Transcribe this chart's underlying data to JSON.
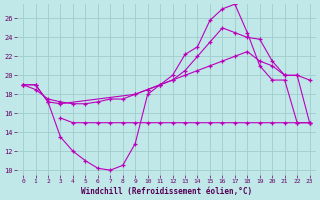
{
  "xlabel": "Windchill (Refroidissement éolien,°C)",
  "bg_color": "#c0e8e8",
  "grid_color": "#a0cccc",
  "line_color": "#bb00bb",
  "xlim": [
    -0.5,
    23.5
  ],
  "ylim": [
    9.5,
    27.5
  ],
  "yticks": [
    10,
    12,
    14,
    16,
    18,
    20,
    22,
    24,
    26
  ],
  "xticks": [
    0,
    1,
    2,
    3,
    4,
    5,
    6,
    7,
    8,
    9,
    10,
    11,
    12,
    13,
    14,
    15,
    16,
    17,
    18,
    19,
    20,
    21,
    22,
    23
  ],
  "line1_x": [
    0,
    1,
    2,
    3,
    4,
    5,
    6,
    7,
    8,
    9,
    10,
    11,
    12,
    13,
    14,
    15,
    16,
    17,
    18,
    19,
    20,
    21,
    22,
    23
  ],
  "line1_y": [
    19,
    19,
    17.2,
    13.5,
    12.0,
    11.0,
    10.2,
    10.0,
    10.5,
    12.8,
    18,
    19,
    20,
    22.2,
    23,
    25.8,
    27.0,
    27.5,
    24.5,
    21.0,
    19.5,
    19.5,
    15.0,
    15.0
  ],
  "line2_x": [
    3,
    4,
    5,
    6,
    7,
    8,
    9,
    10,
    11,
    12,
    13,
    14,
    15,
    16,
    17,
    18,
    19,
    20,
    21,
    22,
    23
  ],
  "line2_y": [
    15.5,
    15.0,
    15.0,
    15.0,
    15.0,
    15.0,
    15.0,
    15.0,
    15.0,
    15.0,
    15.0,
    15.0,
    15.0,
    15.0,
    15.0,
    15.0,
    15.0,
    15.0,
    15.0,
    15.0,
    15.0
  ],
  "line3_x": [
    0,
    1,
    2,
    3,
    4,
    5,
    6,
    7,
    8,
    9,
    10,
    11,
    12,
    13,
    14,
    15,
    16,
    17,
    18,
    19,
    20,
    21,
    22,
    23
  ],
  "line3_y": [
    19.0,
    18.5,
    17.5,
    17.2,
    17.0,
    17.0,
    17.2,
    17.5,
    17.5,
    18.0,
    18.5,
    19.0,
    19.5,
    20.0,
    20.5,
    21.0,
    21.5,
    22.0,
    22.5,
    21.5,
    21.0,
    20.0,
    20.0,
    19.5
  ],
  "line4_x": [
    0,
    1,
    2,
    3,
    9,
    10,
    11,
    12,
    13,
    14,
    15,
    16,
    17,
    18,
    19,
    20,
    21,
    22,
    23
  ],
  "line4_y": [
    19.0,
    19.0,
    17.2,
    17.0,
    18.0,
    18.5,
    19.0,
    19.5,
    20.5,
    22.0,
    23.5,
    25.0,
    24.5,
    24.0,
    23.8,
    21.5,
    20.0,
    20.0,
    15.0
  ]
}
